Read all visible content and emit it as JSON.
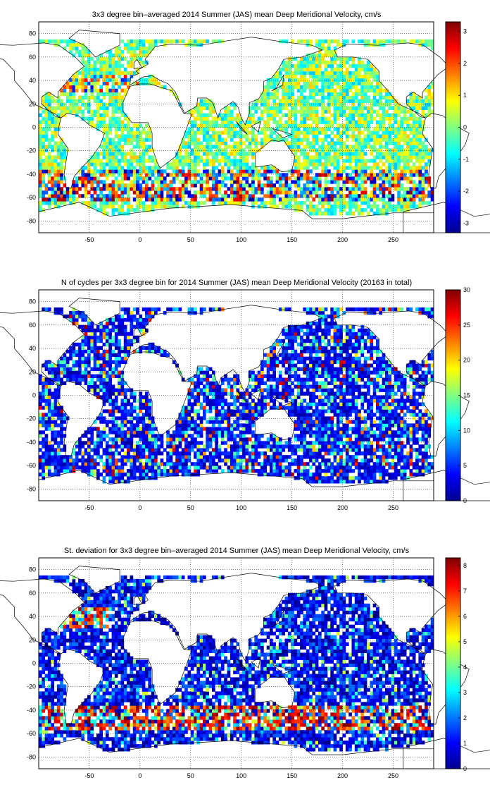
{
  "figure": {
    "panels": [
      {
        "title": "3x3 degree bin–averaged 2014 Summer (JAS) mean Deep Meridional Velocity, cm/s",
        "colorbar": {
          "min": -3.3,
          "max": 3.3,
          "ticks": [
            -3,
            -2,
            -1,
            0,
            1,
            2,
            3
          ]
        }
      },
      {
        "title": "N of cycles per 3x3 degree bin for 2014 Summer (JAS) mean Deep Meridional Velocity (20163 in total)",
        "colorbar": {
          "min": 0,
          "max": 30,
          "ticks": [
            0,
            5,
            10,
            15,
            20,
            25,
            30
          ]
        }
      },
      {
        "title": "St. deviation for 3x3 degree bin–averaged 2014 Summer (JAS) mean Deep Meridional Velocity, cm/s",
        "colorbar": {
          "min": 0,
          "max": 8.3,
          "ticks": [
            0,
            1,
            2,
            3,
            4,
            5,
            6,
            7,
            8
          ]
        }
      }
    ]
  },
  "chart_data": [
    {
      "type": "heatmap",
      "title": "3x3 degree bin–averaged 2014 Summer (JAS) mean Deep Meridional Velocity, cm/s",
      "xlim": [
        -100,
        290
      ],
      "ylim": [
        -90,
        90
      ],
      "xticks": [
        -50,
        0,
        50,
        100,
        150,
        200,
        250
      ],
      "yticks": [
        -80,
        -60,
        -40,
        -20,
        0,
        20,
        40,
        60,
        80
      ],
      "grid": true,
      "colormap": "jet",
      "cell_size_deg": 3,
      "value_range": [
        -3.3,
        3.3
      ],
      "pattern": "mostly near-zero values in the tropics and northern basins; strong positive and negative values concentrated along 35S-60S (Southern Ocean) and the Gulf Stream region"
    },
    {
      "type": "heatmap",
      "title": "N of cycles per 3x3 degree bin for 2014 Summer (JAS) mean Deep Meridional Velocity (20163 in total)",
      "xlim": [
        -100,
        290
      ],
      "ylim": [
        -90,
        90
      ],
      "xticks": [
        -50,
        0,
        50,
        100,
        150,
        200,
        250
      ],
      "yticks": [
        -80,
        -60,
        -40,
        -20,
        0,
        20,
        40,
        60,
        80
      ],
      "grid": true,
      "colormap": "jet",
      "cell_size_deg": 3,
      "value_range": [
        0,
        30
      ],
      "total": 20163,
      "pattern": "mostly 1-6 cycles per bin; higher counts (10-30) scattered in the North Atlantic, North Pacific and tropical Pacific"
    },
    {
      "type": "heatmap",
      "title": "St. deviation for 3x3 degree bin–averaged 2014 Summer (JAS) mean Deep Meridional Velocity, cm/s",
      "xlim": [
        -100,
        290
      ],
      "ylim": [
        -90,
        90
      ],
      "xticks": [
        -50,
        0,
        50,
        100,
        150,
        200,
        250
      ],
      "yticks": [
        -80,
        -60,
        -40,
        -20,
        0,
        20,
        40,
        60,
        80
      ],
      "grid": true,
      "colormap": "jet",
      "cell_size_deg": 3,
      "value_range": [
        0,
        8.3
      ],
      "pattern": "low variability (0-2 cm/s) over most of the ocean; high variability (6-8 cm/s) along the Antarctic Circumpolar Current near 40S-55S and in the western boundary currents"
    }
  ]
}
